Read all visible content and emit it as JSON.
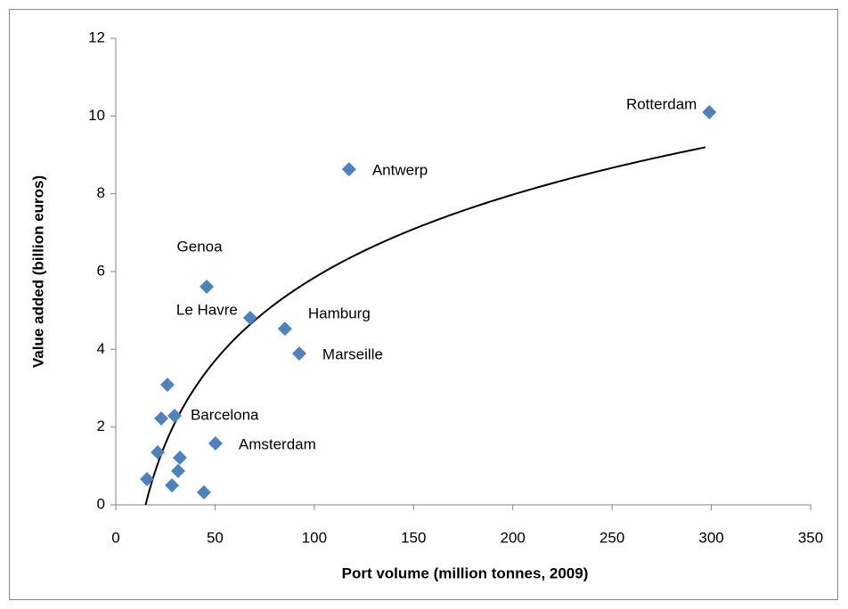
{
  "chart_data": {
    "type": "scatter",
    "x_label": "Port volume (million  tonnes, 2009)",
    "y_label": "Value added (billion euros)",
    "x": [
      299,
      117.5,
      45.8,
      67.7,
      85.2,
      92.4,
      29.6,
      50.2,
      26,
      22.9,
      21.1,
      32.3,
      15.7,
      31.4,
      28.3,
      44.4
    ],
    "y": [
      10.1,
      8.63,
      5.61,
      4.81,
      4.53,
      3.89,
      2.29,
      1.58,
      3.09,
      2.22,
      1.35,
      1.21,
      0.66,
      0.87,
      0.5,
      0.32
    ],
    "labels": [
      "Rotterdam",
      "Antwerp",
      "Genoa",
      "Le Havre",
      "Hamburg",
      "Marseille",
      "Barcelona",
      "Amsterdam",
      null,
      null,
      null,
      null,
      null,
      null,
      null,
      null
    ],
    "color": "#4f81bd",
    "trendline": {
      "type": "logarithmic",
      "a": 3.08,
      "b": -8.34,
      "x_start": 15,
      "x_end": 297,
      "color": "#000000"
    },
    "xlim": [
      0,
      350
    ],
    "xticks": [
      0,
      50,
      100,
      150,
      200,
      250,
      300,
      350
    ],
    "ylim": [
      0,
      12
    ],
    "yticks": [
      0,
      2,
      4,
      6,
      8,
      10,
      12
    ],
    "grid": false
  }
}
